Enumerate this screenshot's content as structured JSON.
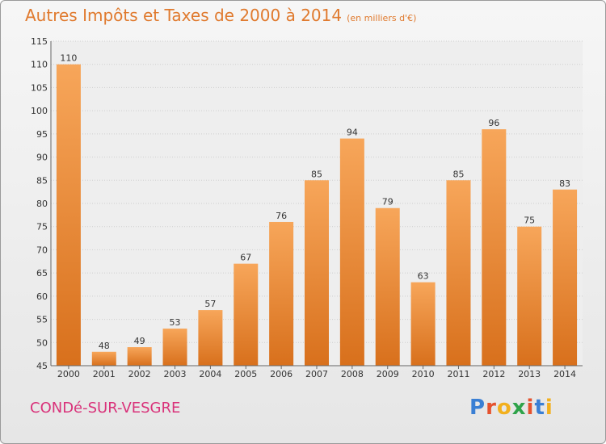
{
  "header": {
    "title": "Autres Impôts et Taxes de 2000 à 2014",
    "subtitle": "(en milliers d'€)"
  },
  "footer": {
    "commune": "CONDé-SUR-VESGRE",
    "logo_letters": [
      "P",
      "r",
      "o",
      "x",
      "i",
      "t",
      "i"
    ],
    "logo_colors": [
      "#3a7fd4",
      "#e5522e",
      "#f2b01e",
      "#2fa34a",
      "#e5522e",
      "#3a7fd4",
      "#f2b01e"
    ]
  },
  "colors": {
    "bar_top": "#f7a65a",
    "bar_bottom": "#d8701c",
    "grid": "#cfcfcf",
    "axis_text": "#333333",
    "title": "#e07a2e"
  },
  "chart_data": {
    "type": "bar",
    "categories": [
      "2000",
      "2001",
      "2002",
      "2003",
      "2004",
      "2005",
      "2006",
      "2007",
      "2008",
      "2009",
      "2010",
      "2011",
      "2012",
      "2013",
      "2014"
    ],
    "values": [
      110,
      48,
      49,
      53,
      57,
      67,
      76,
      85,
      94,
      79,
      63,
      85,
      96,
      75,
      83
    ],
    "title": "Autres Impôts et Taxes de 2000 à 2014",
    "xlabel": "",
    "ylabel": "",
    "ylim": [
      45,
      115
    ],
    "yticks": [
      45,
      50,
      55,
      60,
      65,
      70,
      75,
      80,
      85,
      90,
      95,
      100,
      105,
      110,
      115
    ],
    "grid": true,
    "data_labels": true
  }
}
